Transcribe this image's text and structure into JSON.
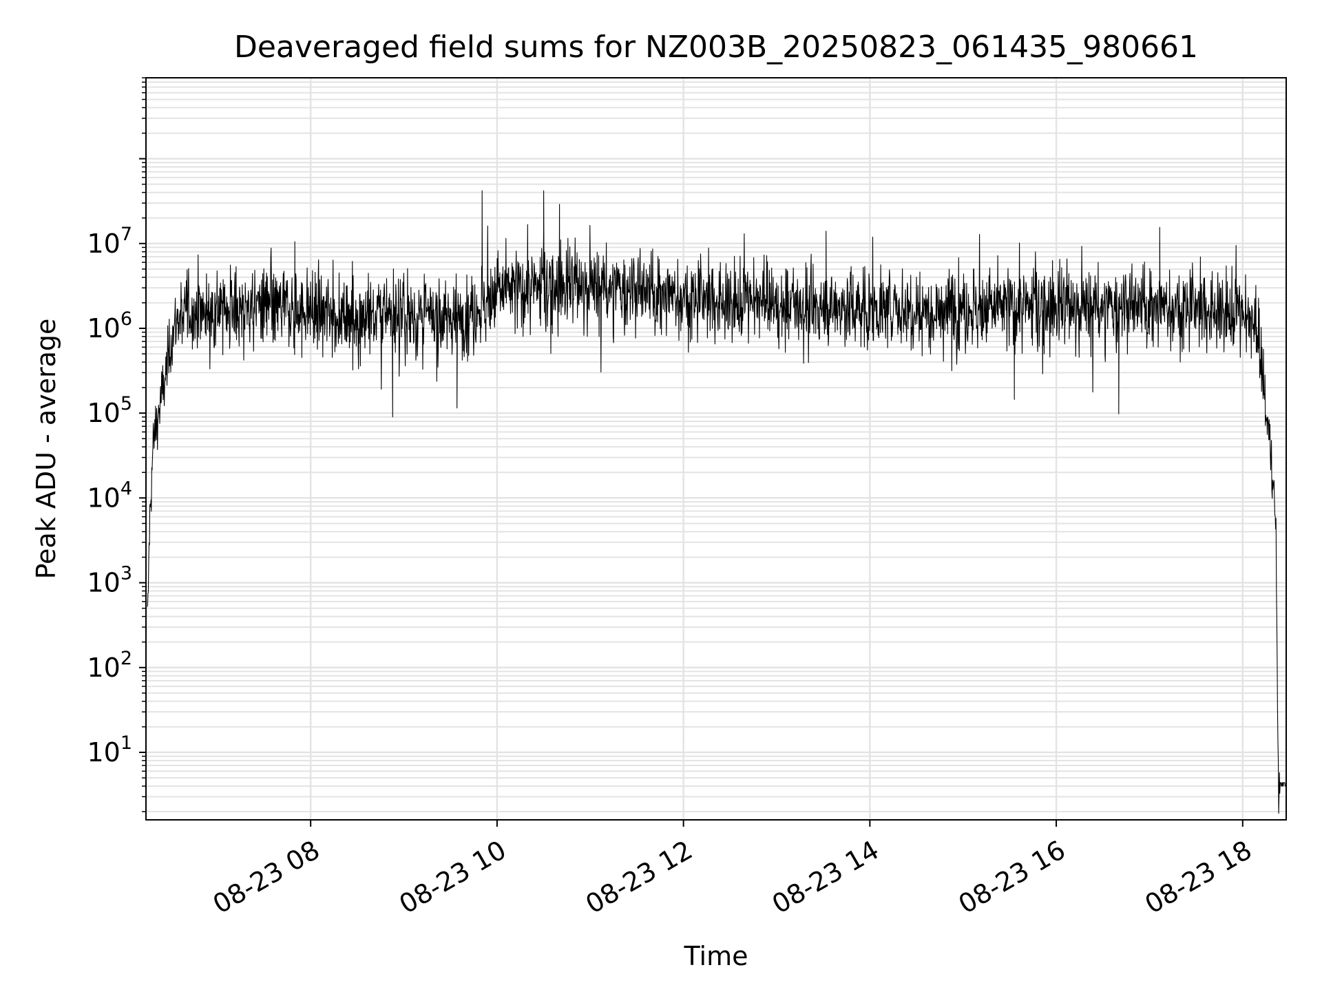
{
  "chart_data": {
    "type": "line",
    "title": "Deaveraged field sums for NZ003B_20250823_061435_980661",
    "xlabel": "Time",
    "ylabel": "Peak ADU - average",
    "yscale": "log",
    "xlim": [
      "08-23 06:14",
      "08-23 18:28"
    ],
    "ylim": [
      1.6,
      900000000
    ],
    "grid": "major and minor, light gray",
    "x_ticks": [
      "08-23 08",
      "08-23 10",
      "08-23 12",
      "08-23 14",
      "08-23 16",
      "08-23 18"
    ],
    "x_tick_hours": [
      8,
      10,
      12,
      14,
      16,
      18
    ],
    "y_tick_exponents": [
      1,
      2,
      3,
      4,
      5,
      6,
      7
    ],
    "y_tick_base": "10",
    "line_color": "#000000",
    "series": [
      {
        "x_hours": [
          6.25,
          6.27,
          6.29,
          6.31,
          6.33,
          6.36,
          6.4,
          6.45,
          6.5,
          6.55,
          6.6,
          6.7,
          6.85,
          7.0,
          7.5,
          8.0,
          8.5,
          9.0,
          9.5,
          9.8,
          10.0,
          10.5,
          11.0,
          11.5,
          12.0,
          12.5,
          13.0,
          13.5,
          14.0,
          14.5,
          15.0,
          15.5,
          16.0,
          16.5,
          17.0,
          17.5,
          17.9,
          18.1,
          18.15,
          18.2,
          18.25,
          18.3,
          18.33,
          18.36,
          18.38,
          18.4,
          18.42,
          18.45,
          18.48
        ],
        "y": [
          300,
          4000,
          15000,
          40000,
          60000,
          90000,
          150000,
          300000,
          700000,
          1100000,
          1500000,
          1600000,
          1600000,
          1700000,
          1800000,
          1600000,
          1400000,
          1400000,
          1300000,
          1700000,
          2800000,
          3000000,
          3000000,
          2700000,
          2300000,
          2000000,
          1900000,
          1800000,
          1700000,
          1700000,
          1700000,
          1800000,
          1700000,
          1700000,
          1800000,
          1700000,
          1500000,
          1100000,
          800000,
          400000,
          100000,
          40000,
          15000,
          3000,
          4,
          4,
          4,
          4,
          4
        ],
        "noise_sigma_log10": 0.24,
        "spikes": [
          {
            "x_hours": 7.83,
            "y": 10500000
          },
          {
            "x_hours": 8.88,
            "y": 90000
          },
          {
            "x_hours": 9.84,
            "y": 42000000
          },
          {
            "x_hours": 10.5,
            "y": 42000000
          },
          {
            "x_hours": 10.67,
            "y": 29000000
          },
          {
            "x_hours": 13.53,
            "y": 14000000
          },
          {
            "x_hours": 17.11,
            "y": 15500000
          },
          {
            "x_hours": 15.55,
            "y": 145000
          },
          {
            "x_hours": 16.67,
            "y": 98000
          },
          {
            "x_hours": 9.57,
            "y": 115000
          }
        ]
      }
    ]
  }
}
